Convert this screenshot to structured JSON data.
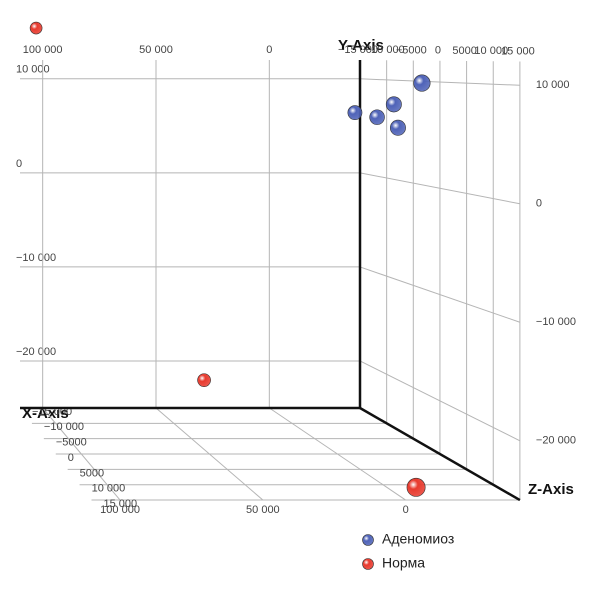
{
  "chart_data": {
    "type": "scatter3d",
    "x_label": "X-Axis",
    "y_label": "Y-Axis",
    "z_label": "Z-Axis",
    "xlim": [
      -40000,
      110000
    ],
    "xticks": [
      0,
      {
        "value": 50000,
        "label": "50 000"
      },
      {
        "value": 100000,
        "label": "100 000"
      }
    ],
    "ylim": [
      -25000,
      12000
    ],
    "yticks": [
      {
        "value": -20000,
        "label": "−20 000"
      },
      {
        "value": -10000,
        "label": "−10 000"
      },
      0,
      {
        "value": 10000,
        "label": "10 000"
      }
    ],
    "zlim": [
      -15000,
      15000
    ],
    "zticks": [
      {
        "value": -15000,
        "label": "−15 000"
      },
      {
        "value": -10000,
        "label": "−10 000"
      },
      {
        "value": -5000,
        "label": "−5000"
      },
      0,
      5000,
      {
        "value": 10000,
        "label": "10 000"
      },
      {
        "value": 15000,
        "label": "15 000"
      }
    ],
    "grid": true,
    "legend": "bottom",
    "series": [
      {
        "name": "Аденомиоз",
        "color": "#4f63b8",
        "x": [
          -23200,
          -22000,
          -16300,
          -19300,
          -23600
        ],
        "y": [
          10000,
          7900,
          6900,
          6600,
          5700
        ],
        "z": [
          5000,
          0,
          -5000,
          -2000,
          0
        ]
      },
      {
        "name": "Норма",
        "color": "#e83a2e",
        "x": [
          102900,
          37200,
          -8600
        ],
        "y": [
          15400,
          -20600,
          -24700
        ],
        "z": [
          -15000,
          -10000,
          12000
        ]
      }
    ]
  }
}
